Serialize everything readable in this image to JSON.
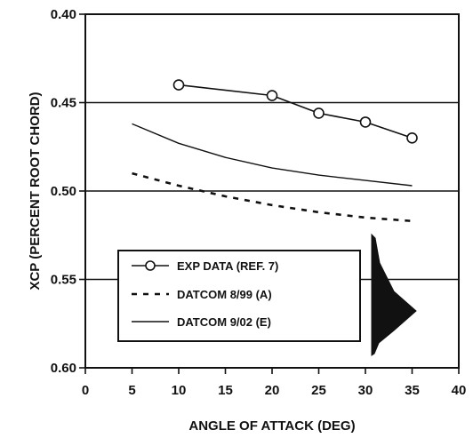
{
  "chart_data": {
    "type": "line",
    "title": "",
    "xlabel": "ANGLE OF ATTACK (DEG)",
    "ylabel": "XCP (PERCENT ROOT CHORD)",
    "xlim": [
      0,
      40
    ],
    "ylim": [
      0.4,
      0.6
    ],
    "y_inverted": true,
    "x_ticks": [
      "0",
      "5",
      "10",
      "15",
      "20",
      "25",
      "30",
      "35",
      "40"
    ],
    "y_ticks": [
      "0.40",
      "0.45",
      "0.50",
      "0.55",
      "0.60"
    ],
    "grid": "horizontal lines at y ticks",
    "legend_placement": "lower-left",
    "series": [
      {
        "name": "EXP DATA (REF. 7)",
        "style": "solid line with open circle markers",
        "x": [
          10,
          20,
          25,
          30,
          35
        ],
        "y": [
          0.44,
          0.446,
          0.456,
          0.461,
          0.47
        ]
      },
      {
        "name": "DATCOM 8/99 (A)",
        "style": "dashed",
        "x": [
          5,
          10,
          15,
          20,
          25,
          30,
          35
        ],
        "y": [
          0.49,
          0.497,
          0.503,
          0.508,
          0.512,
          0.515,
          0.517
        ]
      },
      {
        "name": "DATCOM 9/02 (E)",
        "style": "solid",
        "x": [
          5,
          10,
          15,
          20,
          25,
          30,
          35
        ],
        "y": [
          0.462,
          0.473,
          0.481,
          0.487,
          0.491,
          0.494,
          0.497
        ]
      }
    ]
  }
}
